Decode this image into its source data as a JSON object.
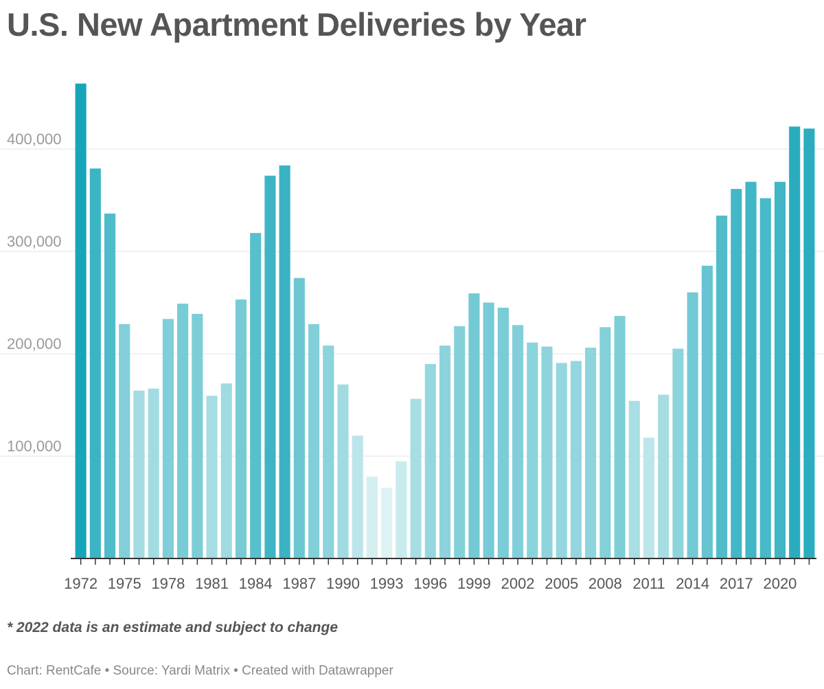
{
  "chart_data": {
    "type": "bar",
    "title": "U.S. New Apartment Deliveries by Year",
    "xlabel": "",
    "ylabel": "",
    "ylim": [
      0,
      470000
    ],
    "y_ticks": [
      100000,
      200000,
      300000,
      400000
    ],
    "y_tick_labels": [
      "100,000",
      "200,000",
      "300,000",
      "400,000"
    ],
    "x_tick_labels": [
      "1972",
      "1975",
      "1978",
      "1981",
      "1984",
      "1987",
      "1990",
      "1993",
      "1996",
      "1999",
      "2002",
      "2005",
      "2008",
      "2011",
      "2014",
      "2017",
      "2020"
    ],
    "grid": true,
    "legend": "none",
    "color_scale": {
      "low": "#def3f4",
      "high": "#17a6b9"
    },
    "categories": [
      "1972",
      "1973",
      "1974",
      "1975",
      "1976",
      "1977",
      "1978",
      "1979",
      "1980",
      "1981",
      "1982",
      "1983",
      "1984",
      "1985",
      "1986",
      "1987",
      "1988",
      "1989",
      "1990",
      "1991",
      "1992",
      "1993",
      "1994",
      "1995",
      "1996",
      "1997",
      "1998",
      "1999",
      "2000",
      "2001",
      "2002",
      "2003",
      "2004",
      "2005",
      "2006",
      "2007",
      "2008",
      "2009",
      "2010",
      "2011",
      "2012",
      "2013",
      "2014",
      "2015",
      "2016",
      "2017",
      "2018",
      "2019",
      "2020",
      "2021",
      "2022"
    ],
    "values": [
      464000,
      381000,
      337000,
      229000,
      164000,
      166000,
      234000,
      249000,
      239000,
      159000,
      171000,
      253000,
      318000,
      374000,
      384000,
      274000,
      229000,
      208000,
      170000,
      120000,
      80000,
      69000,
      95000,
      156000,
      190000,
      208000,
      227000,
      259000,
      250000,
      245000,
      228000,
      211000,
      207000,
      191000,
      193000,
      206000,
      226000,
      237000,
      154000,
      118000,
      160000,
      205000,
      260000,
      286000,
      335000,
      361000,
      368000,
      352000,
      368000,
      422000,
      420000
    ]
  },
  "note": "* 2022 data is an estimate and subject to change",
  "credit": "Chart: RentCafe • Source: Yardi Matrix • Created with Datawrapper"
}
